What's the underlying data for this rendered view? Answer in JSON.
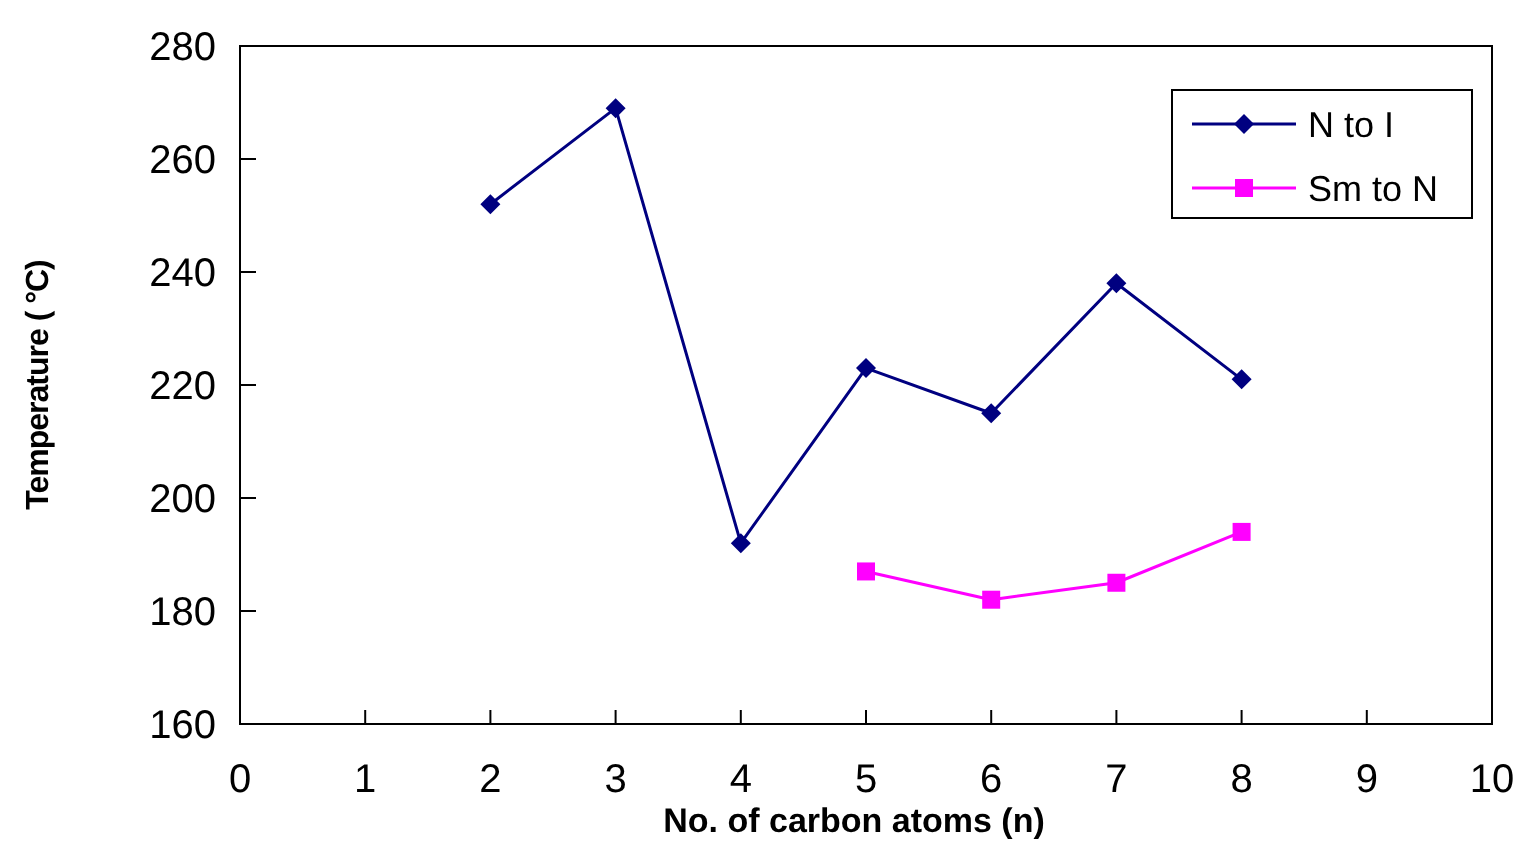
{
  "chart_data": {
    "type": "line",
    "xlabel": "No. of carbon atoms (n)",
    "ylabel": "Temperature (  °C)",
    "x": [
      2,
      3,
      4,
      5,
      6,
      7,
      8
    ],
    "series": [
      {
        "name": "N to I",
        "color": "#000080",
        "marker": "diamond",
        "values": [
          252,
          269,
          192,
          223,
          215,
          238,
          221
        ]
      },
      {
        "name": "Sm to N",
        "color": "#ff00ff",
        "marker": "square",
        "values": [
          null,
          null,
          null,
          187,
          182,
          185,
          194
        ]
      }
    ],
    "xlim": [
      0,
      10
    ],
    "xticks": [
      0,
      1,
      2,
      3,
      4,
      5,
      6,
      7,
      8,
      9,
      10
    ],
    "ylim": [
      160,
      280
    ],
    "yticks": [
      160,
      180,
      200,
      220,
      240,
      260,
      280
    ],
    "grid": false,
    "legend": "top right"
  }
}
